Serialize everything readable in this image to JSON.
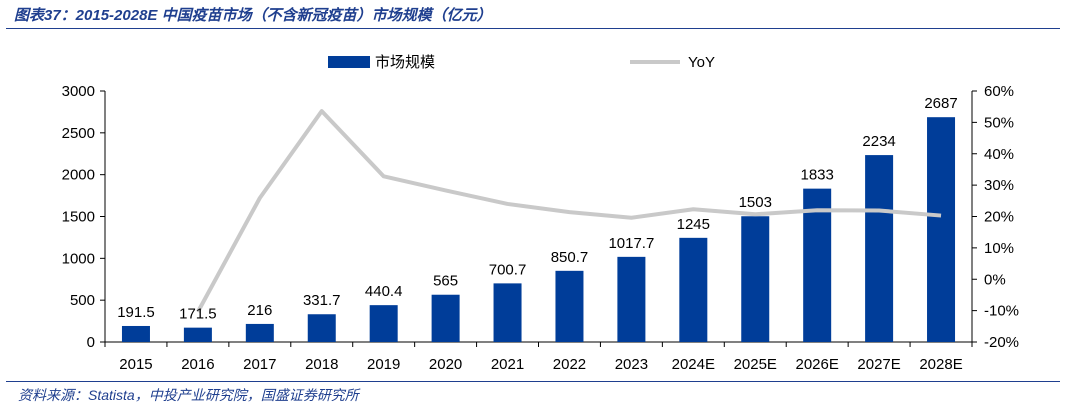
{
  "title": "图表37：2015-2028E 中国疫苗市场（不含新冠疫苗）市场规模（亿元）",
  "source": "资料来源：Statista，中投产业研究院，国盛证券研究所",
  "colors": {
    "bar": "#003d99",
    "line": "#c9c9c9",
    "rule": "#1f3f8f"
  },
  "chart_data": {
    "type": "bar",
    "categories": [
      "2015",
      "2016",
      "2017",
      "2018",
      "2019",
      "2020",
      "2021",
      "2022",
      "2023",
      "2024E",
      "2025E",
      "2026E",
      "2027E",
      "2028E"
    ],
    "series": [
      {
        "name": "市场规模",
        "type": "bar",
        "axis": "left",
        "values": [
          191.5,
          171.5,
          216,
          331.7,
          440.4,
          565,
          700.7,
          850.7,
          1017.7,
          1245,
          1503,
          1833,
          2234,
          2687
        ],
        "labels": [
          "191.5",
          "171.5",
          "216",
          "331.7",
          "440.4",
          "565",
          "700.7",
          "850.7",
          "1017.7",
          "1245",
          "1503",
          "1833",
          "2234",
          "2687"
        ]
      },
      {
        "name": "YoY",
        "type": "line",
        "axis": "right",
        "values": [
          null,
          -10.4,
          25.9,
          53.6,
          32.8,
          28.3,
          24.0,
          21.4,
          19.6,
          22.3,
          20.7,
          22.0,
          21.9,
          20.3
        ]
      }
    ],
    "ylim_left": [
      0,
      3000
    ],
    "yticks_left": [
      "0",
      "500",
      "1000",
      "1500",
      "2000",
      "2500",
      "3000"
    ],
    "ylim_right": [
      -20,
      60
    ],
    "yticks_right": [
      "-20%",
      "-10%",
      "0%",
      "10%",
      "20%",
      "30%",
      "40%",
      "50%",
      "60%"
    ],
    "legend": "top-center",
    "grid": false
  }
}
